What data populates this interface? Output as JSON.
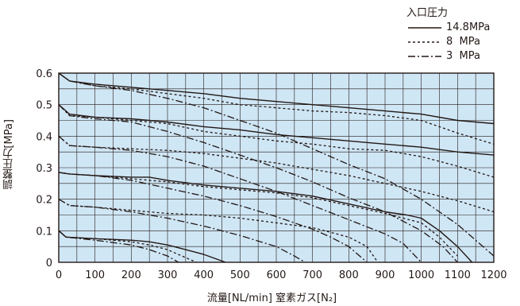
{
  "chart_data": {
    "type": "line",
    "xlabel": "流量[NL/min] 窒素ガス[N₂]",
    "ylabel": "調整圧力[MPa]",
    "xlim": [
      0,
      1200
    ],
    "ylim": [
      0,
      0.6
    ],
    "x_ticks": [
      "0",
      "100",
      "200",
      "300",
      "400",
      "500",
      "600",
      "700",
      "800",
      "900",
      "1000",
      "1100",
      "1200"
    ],
    "y_ticks": [
      "0",
      "0.1",
      "0.2",
      "0.3",
      "0.4",
      "0.5",
      "0.6"
    ],
    "grid": true,
    "legend_placement": "top-right",
    "legend": {
      "title": "入口圧力",
      "entries": [
        {
          "style": "solid",
          "label": "14.8MPa"
        },
        {
          "style": "dotted",
          "label": "8  MPa"
        },
        {
          "style": "dashdot",
          "label": "3  MPa"
        }
      ]
    },
    "series": [
      {
        "group": 0.6,
        "style": "solid",
        "points": [
          [
            0,
            0.6
          ],
          [
            30,
            0.575
          ],
          [
            100,
            0.565
          ],
          [
            200,
            0.555
          ],
          [
            300,
            0.545
          ],
          [
            400,
            0.535
          ],
          [
            500,
            0.52
          ],
          [
            600,
            0.51
          ],
          [
            700,
            0.5
          ],
          [
            800,
            0.49
          ],
          [
            900,
            0.48
          ],
          [
            1000,
            0.47
          ],
          [
            1100,
            0.45
          ],
          [
            1200,
            0.44
          ]
        ]
      },
      {
        "group": 0.6,
        "style": "dotted",
        "points": [
          [
            0,
            0.6
          ],
          [
            30,
            0.575
          ],
          [
            100,
            0.56
          ],
          [
            200,
            0.55
          ],
          [
            300,
            0.535
          ],
          [
            400,
            0.52
          ],
          [
            500,
            0.5
          ],
          [
            600,
            0.49
          ],
          [
            700,
            0.48
          ],
          [
            800,
            0.475
          ],
          [
            900,
            0.465
          ],
          [
            1000,
            0.45
          ],
          [
            1100,
            0.41
          ],
          [
            1200,
            0.375
          ]
        ]
      },
      {
        "group": 0.6,
        "style": "dashdot",
        "points": [
          [
            0,
            0.6
          ],
          [
            30,
            0.575
          ],
          [
            100,
            0.56
          ],
          [
            200,
            0.545
          ],
          [
            300,
            0.52
          ],
          [
            400,
            0.49
          ],
          [
            500,
            0.45
          ],
          [
            600,
            0.41
          ],
          [
            700,
            0.36
          ],
          [
            800,
            0.31
          ],
          [
            900,
            0.265
          ],
          [
            1000,
            0.2
          ],
          [
            1100,
            0.12
          ],
          [
            1150,
            0.07
          ],
          [
            1200,
            0.02
          ]
        ]
      },
      {
        "group": 0.5,
        "style": "solid",
        "points": [
          [
            0,
            0.5
          ],
          [
            30,
            0.47
          ],
          [
            100,
            0.46
          ],
          [
            200,
            0.455
          ],
          [
            300,
            0.445
          ],
          [
            400,
            0.43
          ],
          [
            500,
            0.42
          ],
          [
            600,
            0.405
          ],
          [
            700,
            0.395
          ],
          [
            800,
            0.385
          ],
          [
            900,
            0.375
          ],
          [
            1000,
            0.365
          ],
          [
            1100,
            0.35
          ],
          [
            1200,
            0.34
          ]
        ]
      },
      {
        "group": 0.5,
        "style": "dotted",
        "points": [
          [
            0,
            0.5
          ],
          [
            30,
            0.465
          ],
          [
            100,
            0.46
          ],
          [
            200,
            0.45
          ],
          [
            300,
            0.44
          ],
          [
            400,
            0.415
          ],
          [
            500,
            0.4
          ],
          [
            600,
            0.385
          ],
          [
            700,
            0.375
          ],
          [
            800,
            0.36
          ],
          [
            900,
            0.355
          ],
          [
            1000,
            0.335
          ],
          [
            1100,
            0.305
          ],
          [
            1200,
            0.27
          ]
        ]
      },
      {
        "group": 0.5,
        "style": "dashdot",
        "points": [
          [
            0,
            0.5
          ],
          [
            30,
            0.465
          ],
          [
            100,
            0.455
          ],
          [
            200,
            0.445
          ],
          [
            300,
            0.415
          ],
          [
            400,
            0.38
          ],
          [
            500,
            0.34
          ],
          [
            600,
            0.3
          ],
          [
            700,
            0.255
          ],
          [
            800,
            0.205
          ],
          [
            900,
            0.16
          ],
          [
            1000,
            0.1
          ],
          [
            1060,
            0.05
          ],
          [
            1100,
            0.0
          ]
        ]
      },
      {
        "group": 0.4,
        "style": "dotted",
        "points": [
          [
            0,
            0.4
          ],
          [
            30,
            0.37
          ],
          [
            100,
            0.365
          ],
          [
            200,
            0.36
          ],
          [
            300,
            0.355
          ],
          [
            400,
            0.345
          ],
          [
            500,
            0.33
          ],
          [
            600,
            0.315
          ],
          [
            700,
            0.295
          ],
          [
            800,
            0.275
          ],
          [
            900,
            0.25
          ],
          [
            1000,
            0.225
          ],
          [
            1100,
            0.195
          ],
          [
            1200,
            0.16
          ]
        ]
      },
      {
        "group": 0.4,
        "style": "dashdot",
        "points": [
          [
            0,
            0.4
          ],
          [
            30,
            0.37
          ],
          [
            100,
            0.365
          ],
          [
            200,
            0.355
          ],
          [
            300,
            0.335
          ],
          [
            400,
            0.305
          ],
          [
            500,
            0.265
          ],
          [
            600,
            0.225
          ],
          [
            700,
            0.18
          ],
          [
            800,
            0.135
          ],
          [
            900,
            0.09
          ],
          [
            950,
            0.06
          ],
          [
            1000,
            0.0
          ]
        ]
      },
      {
        "group": 0.3,
        "style": "solid",
        "points": [
          [
            0,
            0.285
          ],
          [
            30,
            0.28
          ],
          [
            100,
            0.275
          ],
          [
            200,
            0.27
          ],
          [
            250,
            0.27
          ],
          [
            300,
            0.26
          ],
          [
            400,
            0.245
          ],
          [
            500,
            0.235
          ],
          [
            600,
            0.225
          ],
          [
            700,
            0.21
          ],
          [
            800,
            0.185
          ],
          [
            900,
            0.16
          ],
          [
            960,
            0.15
          ],
          [
            1000,
            0.14
          ],
          [
            1050,
            0.1
          ],
          [
            1100,
            0.05
          ],
          [
            1140,
            0.0
          ]
        ]
      },
      {
        "group": 0.3,
        "style": "dotted",
        "points": [
          [
            0,
            0.285
          ],
          [
            30,
            0.28
          ],
          [
            100,
            0.275
          ],
          [
            200,
            0.265
          ],
          [
            300,
            0.255
          ],
          [
            400,
            0.24
          ],
          [
            500,
            0.23
          ],
          [
            600,
            0.22
          ],
          [
            700,
            0.205
          ],
          [
            800,
            0.18
          ],
          [
            900,
            0.155
          ],
          [
            1000,
            0.125
          ],
          [
            1050,
            0.08
          ],
          [
            1100,
            0.02
          ]
        ]
      },
      {
        "group": 0.3,
        "style": "dashdot",
        "points": [
          [
            0,
            0.285
          ],
          [
            30,
            0.28
          ],
          [
            100,
            0.275
          ],
          [
            200,
            0.26
          ],
          [
            300,
            0.235
          ],
          [
            400,
            0.21
          ],
          [
            500,
            0.18
          ],
          [
            600,
            0.145
          ],
          [
            700,
            0.105
          ],
          [
            750,
            0.08
          ],
          [
            800,
            0.05
          ],
          [
            850,
            0.0
          ]
        ]
      },
      {
        "group": 0.2,
        "style": "dotted",
        "points": [
          [
            0,
            0.2
          ],
          [
            30,
            0.18
          ],
          [
            100,
            0.175
          ],
          [
            200,
            0.165
          ],
          [
            300,
            0.155
          ],
          [
            400,
            0.15
          ],
          [
            500,
            0.14
          ],
          [
            600,
            0.125
          ],
          [
            700,
            0.11
          ],
          [
            800,
            0.08
          ],
          [
            850,
            0.05
          ],
          [
            880,
            0.0
          ]
        ]
      },
      {
        "group": 0.2,
        "style": "dashdot",
        "points": [
          [
            0,
            0.2
          ],
          [
            30,
            0.18
          ],
          [
            100,
            0.175
          ],
          [
            200,
            0.16
          ],
          [
            300,
            0.14
          ],
          [
            400,
            0.115
          ],
          [
            500,
            0.085
          ],
          [
            600,
            0.05
          ],
          [
            650,
            0.02
          ],
          [
            680,
            0.0
          ]
        ]
      },
      {
        "group": 0.1,
        "style": "solid",
        "points": [
          [
            0,
            0.1
          ],
          [
            20,
            0.08
          ],
          [
            100,
            0.075
          ],
          [
            200,
            0.07
          ],
          [
            250,
            0.065
          ],
          [
            300,
            0.055
          ],
          [
            350,
            0.04
          ],
          [
            400,
            0.025
          ],
          [
            460,
            0.0
          ]
        ]
      },
      {
        "group": 0.1,
        "style": "dotted",
        "points": [
          [
            0,
            0.1
          ],
          [
            20,
            0.08
          ],
          [
            100,
            0.075
          ],
          [
            200,
            0.065
          ],
          [
            250,
            0.055
          ],
          [
            300,
            0.04
          ],
          [
            350,
            0.015
          ],
          [
            380,
            0.0
          ]
        ]
      },
      {
        "group": 0.1,
        "style": "dashdot",
        "points": [
          [
            0,
            0.1
          ],
          [
            20,
            0.08
          ],
          [
            100,
            0.07
          ],
          [
            200,
            0.055
          ],
          [
            250,
            0.04
          ],
          [
            300,
            0.02
          ],
          [
            330,
            0.0
          ]
        ]
      }
    ]
  },
  "colors": {
    "plot_background": "#cfe6f5",
    "grid": "#231815",
    "line": "#231815"
  }
}
